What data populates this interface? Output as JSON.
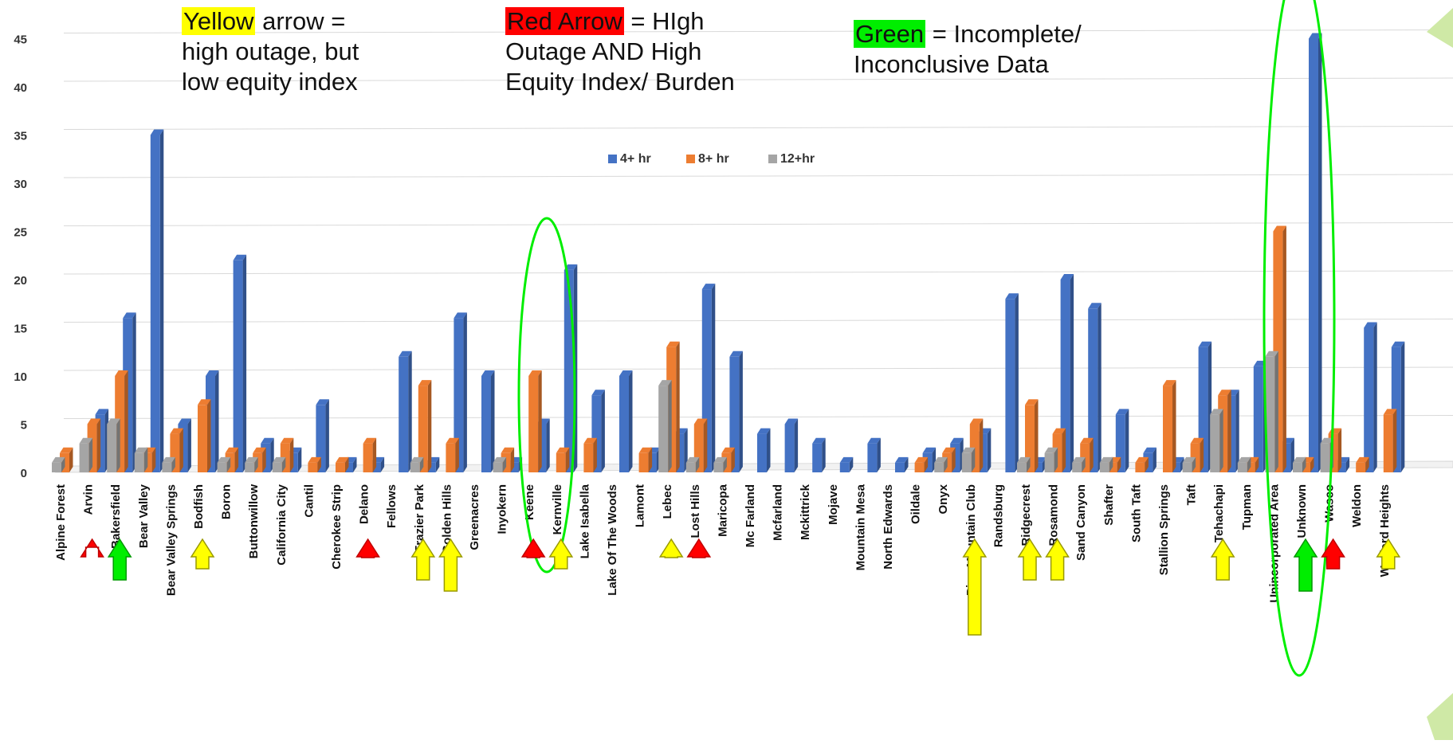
{
  "notes": {
    "yellow": {
      "highlight": "Yellow",
      "rest1": " arrow =",
      "line2": "high outage, but",
      "line3": "low equity index",
      "color": "#ffff00"
    },
    "red": {
      "highlight": "Red Arrow",
      "rest1": " = HIgh",
      "line2": "Outage AND High",
      "line3": "Equity Index/ Burden",
      "color": "#ff0000"
    },
    "green": {
      "highlight": "Green",
      "rest1": " = Incomplete/",
      "line2": "Inconclusive Data",
      "color": "#00ee00"
    }
  },
  "chart_data": {
    "type": "bar",
    "ylim": [
      0,
      45
    ],
    "yticks": [
      0,
      5,
      10,
      15,
      20,
      25,
      30,
      35,
      40,
      45
    ],
    "grid": true,
    "legend_position": "top-center",
    "categories": [
      "Alpine Forest",
      "Arvin",
      "Bakersfield",
      "Bear Valley",
      "Bear Valley Springs",
      "Bodfish",
      "Boron",
      "Buttonwillow",
      "California City",
      "Cantil",
      "Cherokee Strip",
      "Delano",
      "Fellows",
      "Frazier Park",
      "Golden Hills",
      "Greenacres",
      "Inyokern",
      "Keene",
      "Kernville",
      "Lake Isabella",
      "Lake Of The Woods",
      "Lamont",
      "Lebec",
      "Lost Hills",
      "Maricopa",
      "Mc Farland",
      "Mcfarland",
      "Mckittrick",
      "Mojave",
      "Mountain Mesa",
      "North Edwards",
      "Oildale",
      "Onyx",
      "Pine Mountain Club",
      "Randsburg",
      "Ridgecrest",
      "Rosamond",
      "Sand Canyon",
      "Shafter",
      "South Taft",
      "Stallion Springs",
      "Taft",
      "Tehachapi",
      "Tupman",
      "Unincorporated Area",
      "Unknown",
      "Wasco",
      "Weldon",
      "Wofford Heights"
    ],
    "series": [
      {
        "name": "4+ hr",
        "color": "#4472c4",
        "values": [
          0,
          6,
          16,
          35,
          5,
          10,
          22,
          3,
          2,
          7,
          1,
          1,
          12,
          1,
          16,
          10,
          1,
          5,
          21,
          8,
          10,
          2,
          4,
          19,
          12,
          4,
          5,
          3,
          1,
          3,
          1,
          2,
          3,
          4,
          18,
          1,
          20,
          17,
          6,
          2,
          1,
          13,
          8,
          11,
          3,
          45,
          1,
          15,
          13
        ]
      },
      {
        "name": "8+ hr",
        "color": "#ed7d31",
        "values": [
          2,
          5,
          10,
          2,
          4,
          7,
          2,
          2,
          3,
          1,
          1,
          3,
          0,
          9,
          3,
          0,
          2,
          10,
          2,
          3,
          0,
          2,
          13,
          5,
          2,
          0,
          0,
          0,
          0,
          0,
          0,
          1,
          2,
          5,
          0,
          7,
          4,
          3,
          1,
          1,
          9,
          3,
          8,
          1,
          25,
          1,
          4,
          1,
          6
        ]
      },
      {
        "name": "12+hr",
        "color": "#a5a5a5",
        "values": [
          1,
          3,
          5,
          2,
          1,
          0,
          1,
          1,
          1,
          0,
          0,
          0,
          0,
          1,
          0,
          0,
          1,
          0,
          0,
          0,
          0,
          0,
          9,
          1,
          1,
          0,
          0,
          0,
          0,
          0,
          0,
          0,
          1,
          2,
          0,
          1,
          2,
          1,
          1,
          0,
          0,
          1,
          6,
          1,
          12,
          1,
          3,
          0,
          0
        ]
      }
    ]
  },
  "arrows": [
    {
      "category": "Arvin",
      "color": "red",
      "fill": "#ff0000",
      "stroke": "#c00000",
      "bottom": 687
    },
    {
      "category": "Bakersfield",
      "color": "green",
      "fill": "#00ee00",
      "stroke": "#009900",
      "bottom": 728
    },
    {
      "category": "Bodfish",
      "color": "yellow",
      "fill": "#ffff00",
      "stroke": "#999900",
      "bottom": 714
    },
    {
      "category": "Delano",
      "color": "red",
      "fill": "#ff0000",
      "stroke": "#c00000",
      "bottom": 700
    },
    {
      "category": "Frazier Park",
      "color": "yellow",
      "fill": "#ffff00",
      "stroke": "#999900",
      "bottom": 728
    },
    {
      "category": "Golden Hills",
      "color": "yellow",
      "fill": "#ffff00",
      "stroke": "#999900",
      "bottom": 742
    },
    {
      "category": "Keene",
      "color": "red",
      "fill": "#ff0000",
      "stroke": "#c00000",
      "bottom": 700
    },
    {
      "category": "Kernville",
      "color": "yellow",
      "fill": "#ffff00",
      "stroke": "#999900",
      "bottom": 714
    },
    {
      "category": "Lebec",
      "color": "yellow",
      "fill": "#ffff00",
      "stroke": "#999900",
      "bottom": 700
    },
    {
      "category": "Lost Hills",
      "color": "red",
      "fill": "#ff0000",
      "stroke": "#c00000",
      "bottom": 700
    },
    {
      "category": "Pine Mountain Club",
      "color": "yellow",
      "fill": "#ffff00",
      "stroke": "#999900",
      "bottom": 797
    },
    {
      "category": "Ridgecrest",
      "color": "yellow",
      "fill": "#ffff00",
      "stroke": "#999900",
      "bottom": 728
    },
    {
      "category": "Rosamond",
      "color": "yellow",
      "fill": "#ffff00",
      "stroke": "#999900",
      "bottom": 728
    },
    {
      "category": "Tehachapi",
      "color": "yellow",
      "fill": "#ffff00",
      "stroke": "#999900",
      "bottom": 728
    },
    {
      "category": "Unknown",
      "color": "green",
      "fill": "#00ee00",
      "stroke": "#009900",
      "bottom": 742
    },
    {
      "category": "Wasco",
      "color": "red",
      "fill": "#ff0000",
      "stroke": "#c00000",
      "bottom": 714
    },
    {
      "category": "Wofford Heights",
      "color": "yellow",
      "fill": "#ffff00",
      "stroke": "#999900",
      "bottom": 714
    }
  ],
  "ellipses": [
    {
      "around": "Keene-Kernville",
      "color": "#00ee00"
    },
    {
      "around": "Unincorporated Area-Unknown",
      "color": "#00ee00"
    }
  ]
}
